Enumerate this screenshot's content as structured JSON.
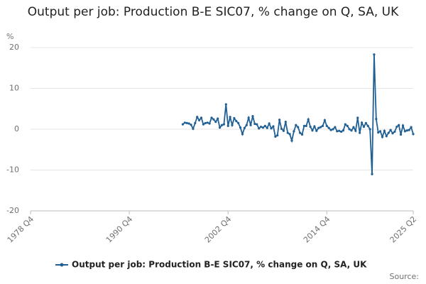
{
  "chart_data": {
    "type": "line",
    "title": "Output per job: Production B-E SIC07, % change on Q, SA, UK",
    "y_label": "%",
    "source_label": "Source:",
    "categories": [
      "1978 Q4",
      null,
      null,
      null,
      null,
      null,
      null,
      null,
      null,
      null,
      null,
      null,
      null,
      null,
      null,
      null,
      null,
      null,
      null,
      null,
      null,
      null,
      null,
      null,
      null,
      null,
      null,
      null,
      null,
      null,
      null,
      null,
      null,
      null,
      null,
      null,
      null,
      null,
      null,
      null,
      null,
      null,
      null,
      null,
      null,
      null,
      null,
      null,
      "1990 Q4",
      null,
      null,
      null,
      null,
      null,
      null,
      null,
      null,
      null,
      null,
      null,
      null,
      null,
      null,
      null,
      null,
      null,
      null,
      null,
      null,
      null,
      null,
      null,
      null,
      null,
      null,
      null,
      null,
      null,
      null,
      null,
      null,
      null,
      null,
      null,
      null,
      null,
      null,
      null,
      null,
      null,
      null,
      null,
      null,
      null,
      null,
      null,
      "2002 Q4",
      null,
      null,
      null,
      null,
      null,
      null,
      null,
      null,
      null,
      null,
      null,
      null,
      null,
      null,
      null,
      null,
      null,
      null,
      null,
      null,
      null,
      null,
      null,
      null,
      null,
      null,
      null,
      null,
      null,
      null,
      null,
      null,
      null,
      null,
      null,
      null,
      null,
      null,
      null,
      null,
      null,
      null,
      null,
      null,
      null,
      null,
      null,
      "2014 Q4",
      null,
      null,
      null,
      null,
      null,
      null,
      null,
      null,
      null,
      null,
      null,
      null,
      null,
      null,
      null,
      null,
      null,
      null,
      null,
      null,
      null,
      null,
      null,
      null,
      null,
      null,
      null,
      null,
      null,
      null,
      null,
      null,
      null,
      null,
      null,
      null,
      null,
      null,
      null,
      null,
      null,
      "2025 Q2"
    ],
    "series": [
      {
        "name": "Output per job: Production B-E SIC07, % change on Q, SA, UK",
        "color": "#206095",
        "values": [
          null,
          null,
          null,
          null,
          null,
          null,
          null,
          null,
          null,
          null,
          null,
          null,
          null,
          null,
          null,
          null,
          null,
          null,
          null,
          null,
          null,
          null,
          null,
          null,
          null,
          null,
          null,
          null,
          null,
          null,
          null,
          null,
          null,
          null,
          null,
          null,
          null,
          null,
          null,
          null,
          null,
          null,
          null,
          null,
          null,
          null,
          null,
          null,
          null,
          null,
          null,
          null,
          null,
          null,
          null,
          null,
          null,
          null,
          null,
          null,
          null,
          null,
          null,
          null,
          null,
          null,
          null,
          null,
          null,
          null,
          null,
          null,
          null,
          null,
          1.2,
          1.6,
          1.5,
          1.4,
          1.1,
          0.1,
          1.5,
          3.0,
          2.2,
          2.8,
          1.2,
          1.5,
          1.6,
          1.4,
          2.8,
          2.4,
          1.8,
          2.6,
          0.4,
          1.0,
          1.2,
          6.1,
          0.8,
          3.0,
          1.0,
          2.7,
          2.0,
          1.5,
          0.4,
          -1.2,
          0.3,
          1.0,
          2.8,
          1.0,
          3.2,
          1.3,
          1.2,
          0.2,
          0.6,
          0.4,
          0.8,
          0.3,
          1.4,
          0.2,
          0.7,
          -1.8,
          -1.5,
          2.3,
          0.1,
          -0.4,
          1.8,
          -0.9,
          -1.2,
          -2.8,
          -0.5,
          1.0,
          0.5,
          -0.9,
          -1.3,
          0.8,
          0.8,
          2.4,
          0.6,
          -0.3,
          0.7,
          -0.4,
          0.3,
          0.5,
          0.8,
          2.2,
          0.8,
          0.3,
          -0.2,
          0.0,
          0.5,
          -0.5,
          -0.4,
          -0.6,
          -0.3,
          1.2,
          0.8,
          0.0,
          -0.3,
          0.5,
          -0.4,
          2.8,
          -0.9,
          1.6,
          0.6,
          1.5,
          0.8,
          0.0,
          -11.0,
          18.3,
          2.5,
          -0.8,
          -0.5,
          -1.9,
          -0.4,
          -1.7,
          -0.9,
          -0.2,
          -1.0,
          -0.6,
          0.6,
          1.0,
          -1.3,
          0.9,
          -0.5,
          -0.3,
          -0.2,
          0.5,
          -1.2
        ]
      }
    ],
    "ylim": [
      -20,
      20
    ],
    "yticks": [
      20,
      10,
      0,
      -10,
      -20
    ],
    "grid": true,
    "legend": "bottom"
  }
}
